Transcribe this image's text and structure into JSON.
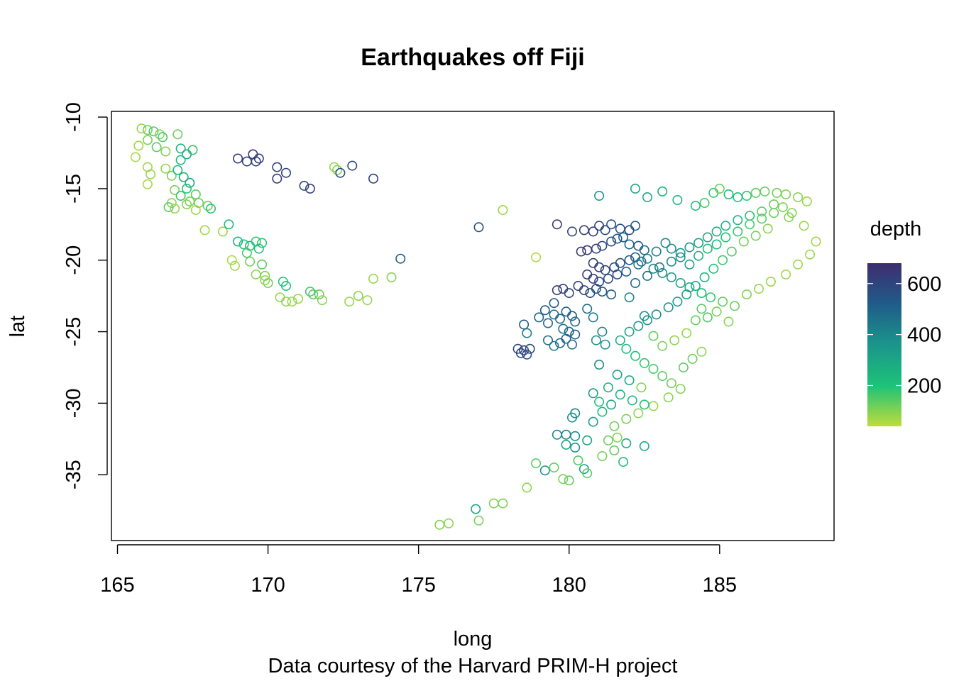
{
  "chart_data": {
    "type": "scatter",
    "title": "Earthquakes off Fiji",
    "xlabel": "long",
    "ylabel": "lat",
    "caption": "Data courtesy of the Harvard PRIM-H project",
    "xlim": [
      164.8,
      188.8
    ],
    "ylim": [
      -39.6,
      -9.6
    ],
    "x_ticks": [
      165,
      170,
      175,
      180,
      185
    ],
    "x_tick_labels": [
      "165",
      "170",
      "175",
      "180",
      "185"
    ],
    "y_ticks": [
      -10,
      -15,
      -20,
      -25,
      -30,
      -35
    ],
    "y_tick_labels": [
      "-10",
      "-15",
      "-20",
      "-25",
      "-30",
      "-35"
    ],
    "grid": false,
    "legend": {
      "title": "depth",
      "position": "right",
      "range": [
        40,
        680
      ],
      "ticks": [
        200,
        400,
        600
      ],
      "tick_labels": [
        "200",
        "400",
        "600"
      ]
    },
    "colors": {
      "deep": "#3e2d6e",
      "mid_deep": "#1f5c8a",
      "mid": "#1b958b",
      "mid_shallow": "#1dc279",
      "shallow": "#bfdc3c"
    },
    "points": [
      [
        165.8,
        -10.8,
        80
      ],
      [
        166.0,
        -10.9,
        120
      ],
      [
        166.2,
        -11.0,
        150
      ],
      [
        166.4,
        -11.2,
        90
      ],
      [
        166.5,
        -11.4,
        160
      ],
      [
        166.0,
        -11.6,
        110
      ],
      [
        165.7,
        -12.0,
        70
      ],
      [
        166.3,
        -12.1,
        140
      ],
      [
        166.6,
        -12.4,
        100
      ],
      [
        165.6,
        -12.8,
        60
      ],
      [
        166.0,
        -13.5,
        70
      ],
      [
        166.1,
        -14.0,
        80
      ],
      [
        166.0,
        -14.7,
        65
      ],
      [
        166.6,
        -13.6,
        90
      ],
      [
        166.8,
        -14.1,
        110
      ],
      [
        167.0,
        -11.2,
        120
      ],
      [
        167.1,
        -12.2,
        250
      ],
      [
        167.3,
        -12.6,
        300
      ],
      [
        167.1,
        -13.0,
        220
      ],
      [
        167.5,
        -12.3,
        180
      ],
      [
        167.0,
        -13.7,
        240
      ],
      [
        167.2,
        -14.2,
        260
      ],
      [
        167.4,
        -14.6,
        300
      ],
      [
        166.9,
        -15.1,
        110
      ],
      [
        167.3,
        -15.0,
        200
      ],
      [
        167.1,
        -15.5,
        170
      ],
      [
        167.6,
        -15.4,
        140
      ],
      [
        167.4,
        -15.9,
        110
      ],
      [
        166.8,
        -16.0,
        90
      ],
      [
        166.7,
        -16.3,
        150
      ],
      [
        166.9,
        -16.4,
        80
      ],
      [
        167.3,
        -16.1,
        100
      ],
      [
        167.7,
        -16.0,
        120
      ],
      [
        167.6,
        -16.5,
        70
      ],
      [
        168.0,
        -16.2,
        130
      ],
      [
        168.1,
        -16.4,
        190
      ],
      [
        167.9,
        -17.9,
        70
      ],
      [
        168.5,
        -18.0,
        80
      ],
      [
        168.7,
        -17.5,
        210
      ],
      [
        169.0,
        -18.7,
        250
      ],
      [
        169.2,
        -18.9,
        200
      ],
      [
        169.4,
        -19.0,
        230
      ],
      [
        169.6,
        -18.7,
        180
      ],
      [
        169.3,
        -19.5,
        160
      ],
      [
        169.7,
        -19.2,
        210
      ],
      [
        169.8,
        -18.8,
        190
      ],
      [
        168.8,
        -20.0,
        60
      ],
      [
        168.9,
        -20.4,
        70
      ],
      [
        169.4,
        -20.1,
        120
      ],
      [
        169.8,
        -20.3,
        140
      ],
      [
        169.6,
        -21.0,
        90
      ],
      [
        169.9,
        -21.1,
        100
      ],
      [
        170.0,
        -21.6,
        110
      ],
      [
        169.9,
        -21.4,
        80
      ],
      [
        170.5,
        -21.5,
        190
      ],
      [
        170.6,
        -21.8,
        200
      ],
      [
        170.4,
        -22.6,
        80
      ],
      [
        170.6,
        -22.9,
        90
      ],
      [
        170.8,
        -22.9,
        75
      ],
      [
        171.0,
        -22.7,
        85
      ],
      [
        171.4,
        -22.2,
        160
      ],
      [
        171.5,
        -22.4,
        140
      ],
      [
        171.7,
        -22.4,
        130
      ],
      [
        171.8,
        -22.8,
        90
      ],
      [
        169.0,
        -12.9,
        640
      ],
      [
        169.3,
        -13.1,
        620
      ],
      [
        169.5,
        -12.6,
        660
      ],
      [
        169.7,
        -12.9,
        630
      ],
      [
        169.6,
        -13.1,
        600
      ],
      [
        170.3,
        -13.5,
        620
      ],
      [
        170.3,
        -14.3,
        640
      ],
      [
        170.6,
        -13.9,
        610
      ],
      [
        171.2,
        -14.8,
        600
      ],
      [
        171.4,
        -15.0,
        620
      ],
      [
        172.2,
        -13.5,
        80
      ],
      [
        172.3,
        -13.7,
        100
      ],
      [
        172.4,
        -13.9,
        560
      ],
      [
        172.8,
        -13.4,
        580
      ],
      [
        172.7,
        -22.9,
        80
      ],
      [
        173.0,
        -22.5,
        90
      ],
      [
        173.3,
        -22.8,
        80
      ],
      [
        173.5,
        -14.3,
        620
      ],
      [
        173.5,
        -21.3,
        80
      ],
      [
        174.1,
        -21.2,
        90
      ],
      [
        174.4,
        -19.9,
        520
      ],
      [
        177.0,
        -17.7,
        560
      ],
      [
        177.8,
        -16.5,
        80
      ],
      [
        178.9,
        -19.8,
        60
      ],
      [
        179.6,
        -17.5,
        640
      ],
      [
        180.1,
        -18.0,
        600
      ],
      [
        180.5,
        -17.9,
        620
      ],
      [
        180.8,
        -18.0,
        640
      ],
      [
        181.0,
        -17.6,
        600
      ],
      [
        181.2,
        -17.9,
        590
      ],
      [
        181.4,
        -17.5,
        570
      ],
      [
        181.7,
        -17.8,
        560
      ],
      [
        182.0,
        -17.9,
        580
      ],
      [
        182.2,
        -17.6,
        520
      ],
      [
        180.4,
        -19.4,
        640
      ],
      [
        180.6,
        -19.3,
        650
      ],
      [
        180.9,
        -19.2,
        620
      ],
      [
        181.1,
        -19.0,
        600
      ],
      [
        181.4,
        -18.7,
        560
      ],
      [
        181.6,
        -18.5,
        540
      ],
      [
        181.8,
        -18.4,
        520
      ],
      [
        182.0,
        -18.9,
        500
      ],
      [
        182.3,
        -19.0,
        540
      ],
      [
        182.5,
        -19.3,
        480
      ],
      [
        180.8,
        -20.2,
        640
      ],
      [
        181.0,
        -20.5,
        620
      ],
      [
        181.2,
        -20.7,
        600
      ],
      [
        181.5,
        -20.5,
        580
      ],
      [
        181.7,
        -20.2,
        560
      ],
      [
        182.0,
        -20.0,
        540
      ],
      [
        182.2,
        -19.8,
        520
      ],
      [
        182.4,
        -20.1,
        480
      ],
      [
        180.6,
        -21.0,
        640
      ],
      [
        180.8,
        -21.3,
        620
      ],
      [
        181.0,
        -21.5,
        600
      ],
      [
        181.3,
        -21.3,
        580
      ],
      [
        181.6,
        -21.0,
        550
      ],
      [
        181.9,
        -20.8,
        520
      ],
      [
        180.3,
        -21.8,
        620
      ],
      [
        180.5,
        -22.1,
        600
      ],
      [
        180.7,
        -22.3,
        580
      ],
      [
        180.9,
        -22.0,
        560
      ],
      [
        181.1,
        -22.2,
        540
      ],
      [
        181.4,
        -22.4,
        520
      ],
      [
        179.6,
        -22.1,
        640
      ],
      [
        179.8,
        -22.0,
        620
      ],
      [
        180.0,
        -22.3,
        600
      ],
      [
        179.5,
        -23.0,
        540
      ],
      [
        179.2,
        -23.5,
        520
      ],
      [
        179.0,
        -24.0,
        500
      ],
      [
        179.3,
        -24.4,
        480
      ],
      [
        179.5,
        -23.8,
        460
      ],
      [
        179.7,
        -24.1,
        480
      ],
      [
        179.9,
        -23.6,
        500
      ],
      [
        180.1,
        -23.9,
        520
      ],
      [
        180.2,
        -24.3,
        480
      ],
      [
        179.8,
        -24.8,
        460
      ],
      [
        180.0,
        -25.0,
        500
      ],
      [
        180.2,
        -25.2,
        520
      ],
      [
        179.9,
        -25.5,
        480
      ],
      [
        179.7,
        -25.8,
        500
      ],
      [
        180.1,
        -25.9,
        460
      ],
      [
        179.5,
        -26.0,
        440
      ],
      [
        179.3,
        -25.6,
        480
      ],
      [
        178.5,
        -24.5,
        520
      ],
      [
        178.6,
        -25.1,
        420
      ],
      [
        178.3,
        -26.2,
        600
      ],
      [
        178.5,
        -26.3,
        620
      ],
      [
        178.7,
        -26.2,
        580
      ],
      [
        178.4,
        -26.5,
        600
      ],
      [
        178.6,
        -26.6,
        560
      ],
      [
        180.6,
        -23.4,
        480
      ],
      [
        180.8,
        -24.0,
        420
      ],
      [
        181.1,
        -25.0,
        400
      ],
      [
        180.9,
        -25.6,
        380
      ],
      [
        181.2,
        -25.9,
        360
      ],
      [
        181.0,
        -27.3,
        380
      ],
      [
        180.8,
        -29.3,
        320
      ],
      [
        181.0,
        -29.9,
        200
      ],
      [
        181.4,
        -30.1,
        300
      ],
      [
        181.1,
        -30.6,
        220
      ],
      [
        180.2,
        -30.7,
        400
      ],
      [
        180.1,
        -31.0,
        380
      ],
      [
        180.8,
        -31.3,
        320
      ],
      [
        179.6,
        -32.2,
        400
      ],
      [
        179.9,
        -32.2,
        420
      ],
      [
        180.2,
        -32.3,
        380
      ],
      [
        180.6,
        -32.6,
        320
      ],
      [
        179.9,
        -32.9,
        300
      ],
      [
        180.2,
        -33.1,
        360
      ],
      [
        181.3,
        -32.6,
        120
      ],
      [
        181.6,
        -32.4,
        100
      ],
      [
        181.9,
        -32.8,
        280
      ],
      [
        181.5,
        -33.3,
        130
      ],
      [
        181.1,
        -33.7,
        110
      ],
      [
        181.8,
        -34.1,
        200
      ],
      [
        182.5,
        -33.0,
        280
      ],
      [
        179.2,
        -34.7,
        360
      ],
      [
        178.9,
        -34.2,
        140
      ],
      [
        179.5,
        -34.5,
        130
      ],
      [
        179.8,
        -35.3,
        110
      ],
      [
        180.0,
        -35.4,
        130
      ],
      [
        180.3,
        -34.0,
        150
      ],
      [
        180.5,
        -34.6,
        320
      ],
      [
        180.6,
        -34.9,
        140
      ],
      [
        178.6,
        -35.9,
        90
      ],
      [
        177.8,
        -37.0,
        110
      ],
      [
        177.5,
        -37.0,
        100
      ],
      [
        176.9,
        -37.4,
        300
      ],
      [
        177.0,
        -38.2,
        110
      ],
      [
        176.0,
        -38.4,
        90
      ],
      [
        175.7,
        -38.5,
        100
      ],
      [
        181.0,
        -15.5,
        360
      ],
      [
        182.2,
        -15.0,
        300
      ],
      [
        182.6,
        -15.6,
        280
      ],
      [
        183.1,
        -15.2,
        260
      ],
      [
        183.6,
        -15.8,
        240
      ],
      [
        184.2,
        -16.2,
        200
      ],
      [
        184.5,
        -16.0,
        160
      ],
      [
        184.8,
        -15.3,
        180
      ],
      [
        185.0,
        -15.0,
        120
      ],
      [
        185.3,
        -15.4,
        220
      ],
      [
        185.6,
        -15.6,
        200
      ],
      [
        185.9,
        -15.5,
        180
      ],
      [
        186.2,
        -15.3,
        140
      ],
      [
        186.5,
        -15.2,
        130
      ],
      [
        186.9,
        -15.3,
        120
      ],
      [
        187.2,
        -15.4,
        100
      ],
      [
        187.6,
        -15.6,
        90
      ],
      [
        187.9,
        -15.9,
        80
      ],
      [
        187.4,
        -16.7,
        100
      ],
      [
        187.1,
        -16.3,
        110
      ],
      [
        186.8,
        -16.1,
        120
      ],
      [
        186.4,
        -16.6,
        140
      ],
      [
        186.0,
        -16.9,
        200
      ],
      [
        185.6,
        -17.2,
        240
      ],
      [
        185.2,
        -17.6,
        260
      ],
      [
        184.9,
        -18.0,
        280
      ],
      [
        184.6,
        -18.4,
        300
      ],
      [
        184.3,
        -18.8,
        320
      ],
      [
        184.0,
        -19.1,
        340
      ],
      [
        183.7,
        -19.5,
        360
      ],
      [
        183.4,
        -19.2,
        380
      ],
      [
        183.2,
        -18.8,
        400
      ],
      [
        182.9,
        -19.4,
        420
      ],
      [
        182.6,
        -19.9,
        440
      ],
      [
        182.3,
        -20.3,
        440
      ],
      [
        182.8,
        -20.6,
        400
      ],
      [
        183.1,
        -20.9,
        380
      ],
      [
        183.4,
        -21.2,
        340
      ],
      [
        183.7,
        -21.6,
        300
      ],
      [
        184.0,
        -21.9,
        260
      ],
      [
        184.4,
        -22.3,
        220
      ],
      [
        184.7,
        -22.6,
        180
      ],
      [
        185.1,
        -22.9,
        140
      ],
      [
        185.5,
        -23.2,
        120
      ],
      [
        185.9,
        -22.4,
        100
      ],
      [
        186.3,
        -22.0,
        80
      ],
      [
        186.7,
        -21.5,
        80
      ],
      [
        187.2,
        -21.0,
        70
      ],
      [
        187.6,
        -20.3,
        70
      ],
      [
        188.0,
        -19.6,
        80
      ],
      [
        188.2,
        -18.7,
        70
      ],
      [
        187.8,
        -17.6,
        80
      ],
      [
        187.3,
        -17.0,
        100
      ],
      [
        186.6,
        -17.8,
        90
      ],
      [
        186.2,
        -18.3,
        110
      ],
      [
        185.8,
        -18.7,
        120
      ],
      [
        185.4,
        -19.4,
        150
      ],
      [
        185.1,
        -20.0,
        170
      ],
      [
        184.8,
        -20.6,
        200
      ],
      [
        184.5,
        -21.2,
        240
      ],
      [
        184.2,
        -21.8,
        280
      ],
      [
        183.9,
        -22.4,
        320
      ],
      [
        183.6,
        -22.9,
        340
      ],
      [
        183.3,
        -23.3,
        360
      ],
      [
        182.9,
        -23.8,
        380
      ],
      [
        182.6,
        -24.2,
        360
      ],
      [
        182.3,
        -24.6,
        340
      ],
      [
        182.0,
        -25.0,
        300
      ],
      [
        181.7,
        -25.6,
        260
      ],
      [
        181.9,
        -26.2,
        220
      ],
      [
        182.2,
        -26.7,
        200
      ],
      [
        182.5,
        -27.2,
        180
      ],
      [
        182.8,
        -27.6,
        160
      ],
      [
        183.1,
        -28.1,
        140
      ],
      [
        183.4,
        -28.6,
        120
      ],
      [
        183.7,
        -29.0,
        100
      ],
      [
        183.3,
        -29.6,
        90
      ],
      [
        182.8,
        -30.2,
        80
      ],
      [
        182.3,
        -30.7,
        90
      ],
      [
        181.9,
        -31.1,
        110
      ],
      [
        181.5,
        -31.6,
        120
      ],
      [
        182.4,
        -28.9,
        100
      ],
      [
        182.0,
        -28.4,
        280
      ],
      [
        181.6,
        -28.0,
        300
      ],
      [
        181.3,
        -28.9,
        260
      ],
      [
        181.7,
        -29.4,
        240
      ],
      [
        182.1,
        -29.8,
        220
      ],
      [
        182.5,
        -30.1,
        200
      ],
      [
        183.8,
        -27.5,
        140
      ],
      [
        184.1,
        -26.9,
        120
      ],
      [
        184.4,
        -26.4,
        90
      ],
      [
        184.2,
        -24.2,
        130
      ],
      [
        184.6,
        -24.0,
        150
      ],
      [
        184.9,
        -23.6,
        110
      ],
      [
        185.3,
        -24.3,
        100
      ],
      [
        184.4,
        -23.4,
        140
      ],
      [
        183.9,
        -25.1,
        80
      ],
      [
        183.5,
        -25.6,
        90
      ],
      [
        183.1,
        -26.0,
        110
      ],
      [
        182.8,
        -25.3,
        130
      ],
      [
        182.5,
        -23.9,
        360
      ],
      [
        182.0,
        -22.6,
        400
      ],
      [
        182.2,
        -21.6,
        480
      ],
      [
        182.6,
        -21.1,
        460
      ],
      [
        183.0,
        -20.5,
        440
      ],
      [
        183.4,
        -20.1,
        400
      ],
      [
        183.7,
        -19.8,
        360
      ],
      [
        184.0,
        -20.3,
        320
      ],
      [
        184.3,
        -19.7,
        280
      ],
      [
        184.6,
        -19.2,
        240
      ],
      [
        184.9,
        -18.9,
        220
      ],
      [
        185.2,
        -18.4,
        200
      ],
      [
        185.6,
        -18.0,
        180
      ],
      [
        186.0,
        -17.5,
        160
      ],
      [
        186.4,
        -17.1,
        140
      ],
      [
        186.8,
        -16.7,
        120
      ]
    ]
  }
}
